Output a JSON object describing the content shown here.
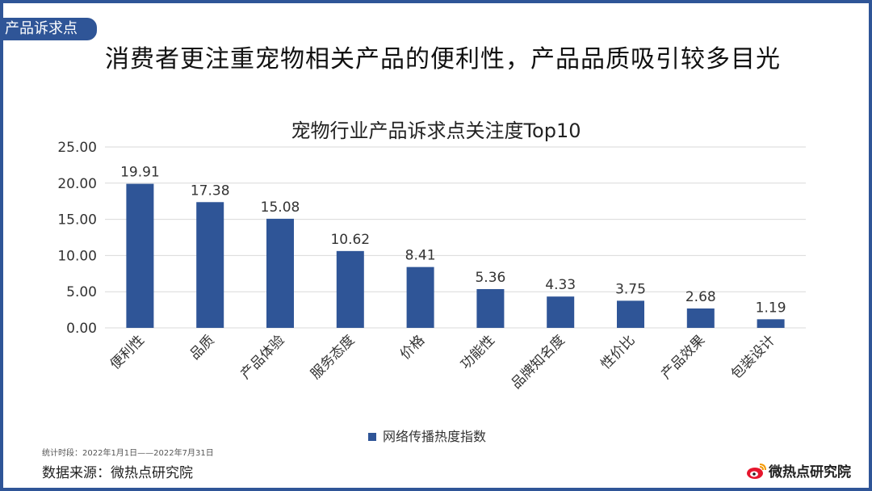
{
  "tag": "产品诉求点",
  "headline": "消费者更注重宠物相关产品的便利性，产品品质吸引较多目光",
  "footer": {
    "period": "统计时段：2022年1月1日——2022年7月31日",
    "source": "数据来源：微热点研究院",
    "logo": "微热点研究院"
  },
  "colors": {
    "frame": "#2f5597",
    "bar": "#2f5597"
  },
  "chart_data": {
    "type": "bar",
    "title": "宠物行业产品诉求点关注度Top10",
    "categories": [
      "便利性",
      "品质",
      "产品体验",
      "服务态度",
      "价格",
      "功能性",
      "品牌知名度",
      "性价比",
      "产品效果",
      "包装设计"
    ],
    "series": [
      {
        "name": "网络传播热度指数",
        "values": [
          19.91,
          17.38,
          15.08,
          10.62,
          8.41,
          5.36,
          4.33,
          3.75,
          2.68,
          1.19
        ]
      }
    ],
    "ylim": [
      0,
      25
    ],
    "yticks": [
      "0.00",
      "5.00",
      "10.00",
      "15.00",
      "20.00",
      "25.00"
    ],
    "grid": true,
    "legend_position": "bottom",
    "xlabel": "",
    "ylabel": ""
  }
}
